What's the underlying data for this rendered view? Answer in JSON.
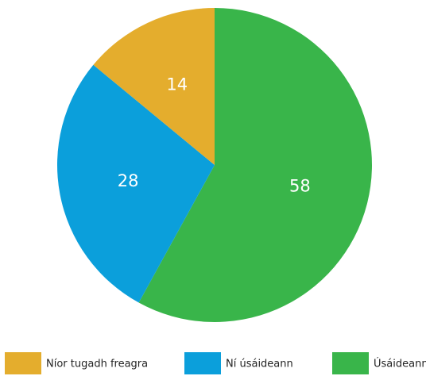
{
  "chart_data": {
    "type": "pie",
    "categories": [
      "Úsáideann",
      "Ní úsáideann",
      "Níor tugadh freagra"
    ],
    "values": [
      58,
      28,
      14
    ],
    "colors": [
      "#39b54a",
      "#0b9fdb",
      "#e4ad2d"
    ],
    "legend": "bottom"
  }
}
